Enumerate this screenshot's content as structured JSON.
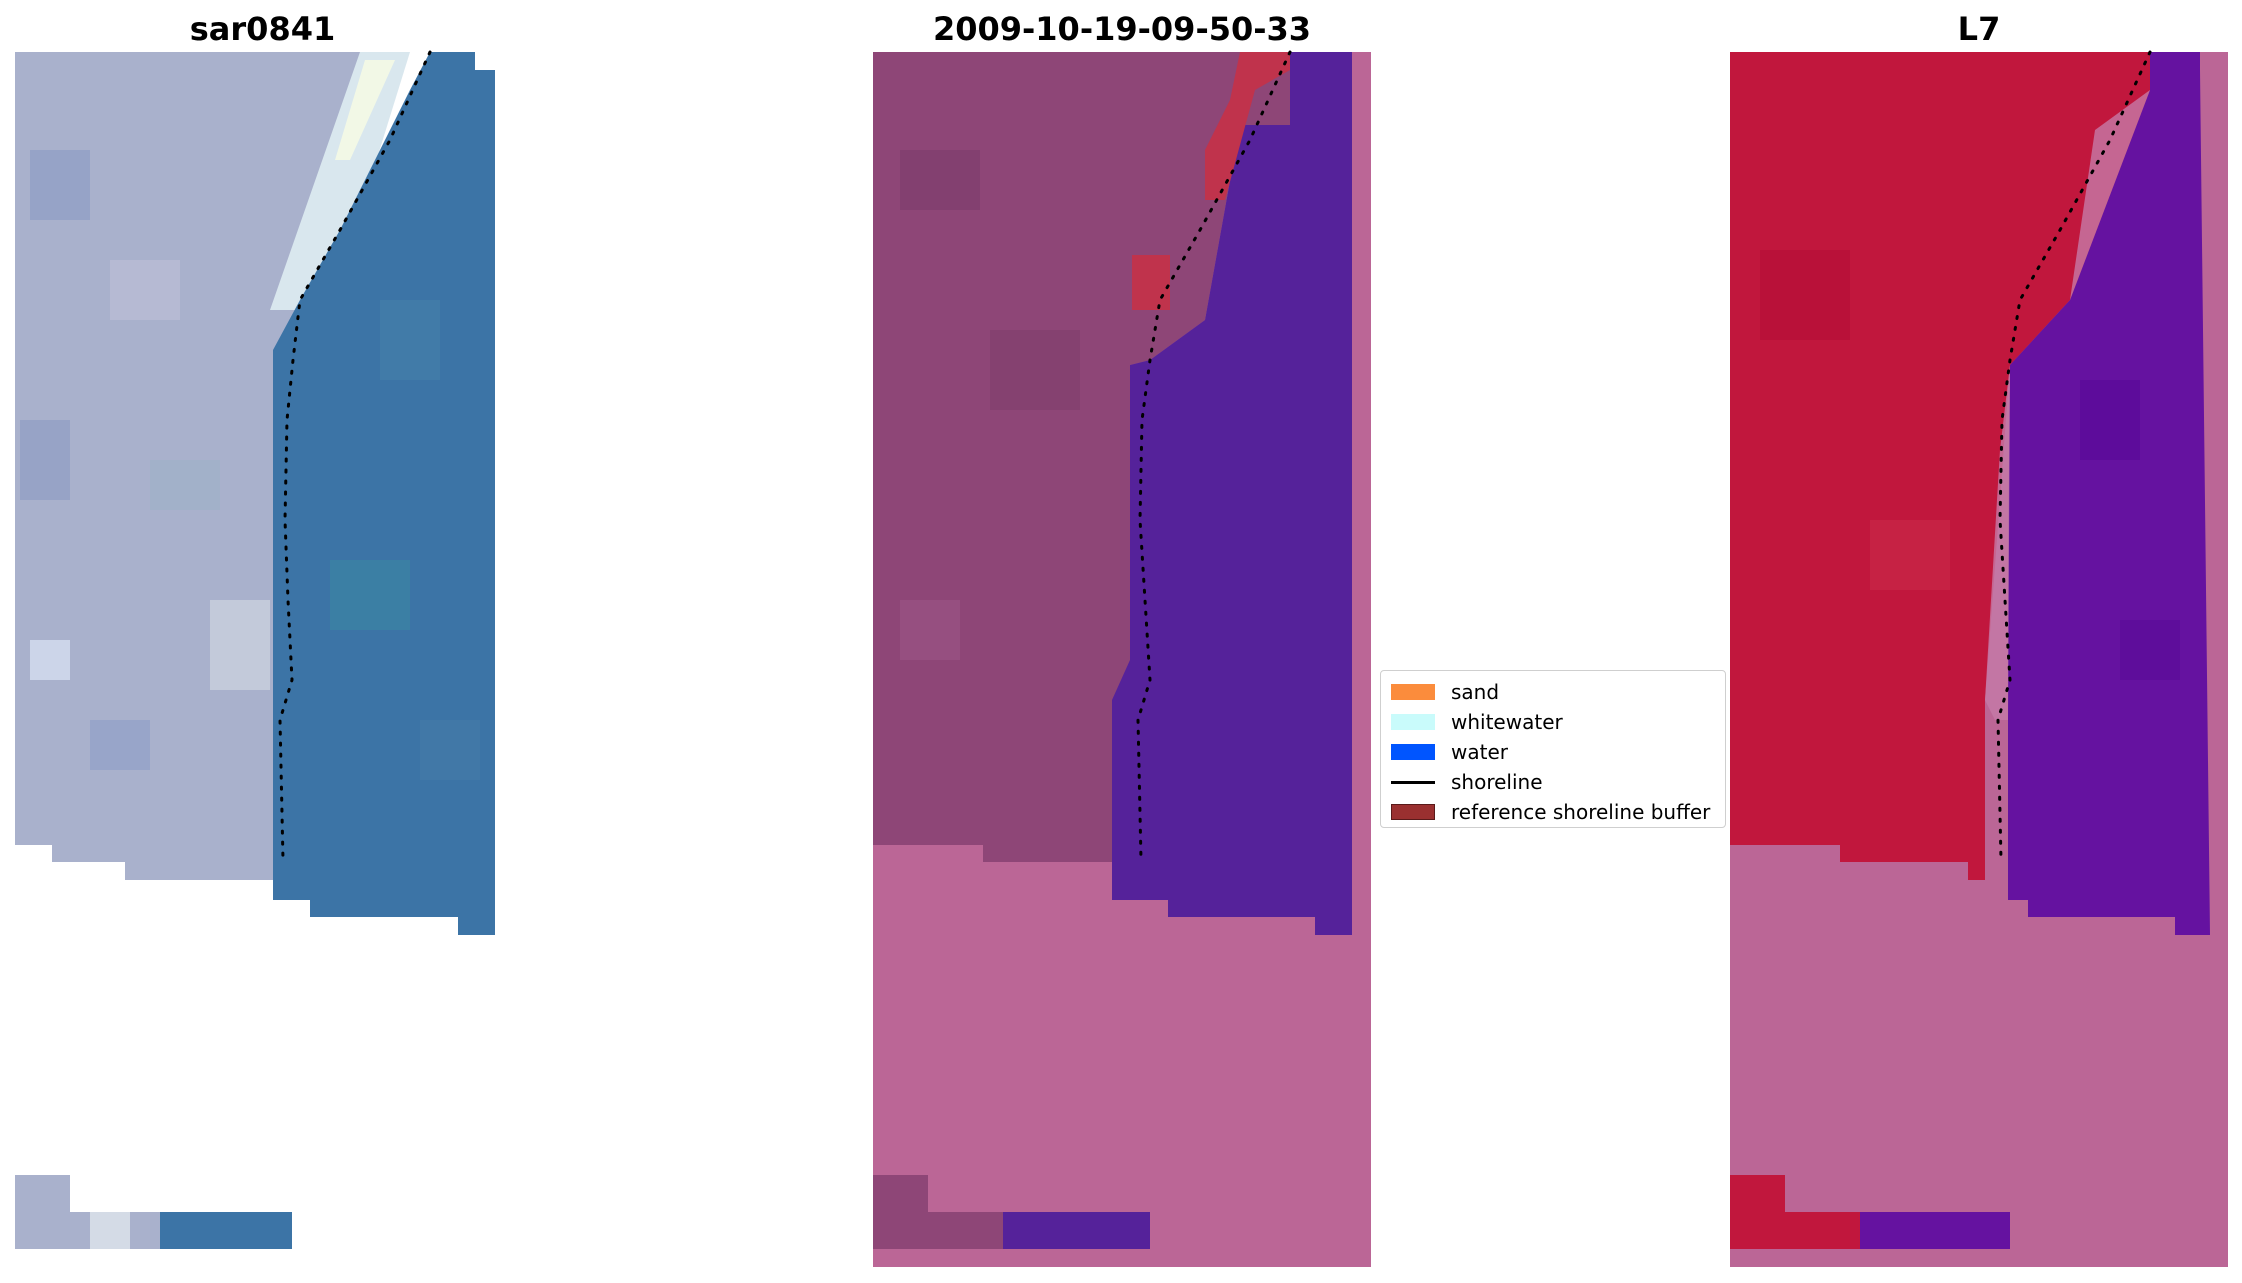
{
  "panels": [
    {
      "title": "sar0841"
    },
    {
      "title": "2009-10-19-09-50-33"
    },
    {
      "title": "L7"
    }
  ],
  "legend": {
    "items": [
      {
        "label": "sand",
        "color": "#fb8c3c"
      },
      {
        "label": "whitewater",
        "color": "#c9fbfb"
      },
      {
        "label": "water",
        "color": "#0055ff"
      },
      {
        "label": "shoreline",
        "color": "#000000"
      },
      {
        "label": "reference shoreline buffer",
        "color": "#9a3030"
      }
    ]
  },
  "colors": {
    "rgb_sand": "#a9b1cc",
    "rgb_sea": "#3c74a6",
    "rgb_white": "#e6f4ee",
    "class_land": "#8e4677",
    "class_water": "#55229a",
    "class_nodata": "#bb6696",
    "class_buffer": "#c0334c",
    "ndwi_land": "#c1173d",
    "ndwi_water": "#6512a0",
    "ndwi_nodata": "#bb6696"
  }
}
